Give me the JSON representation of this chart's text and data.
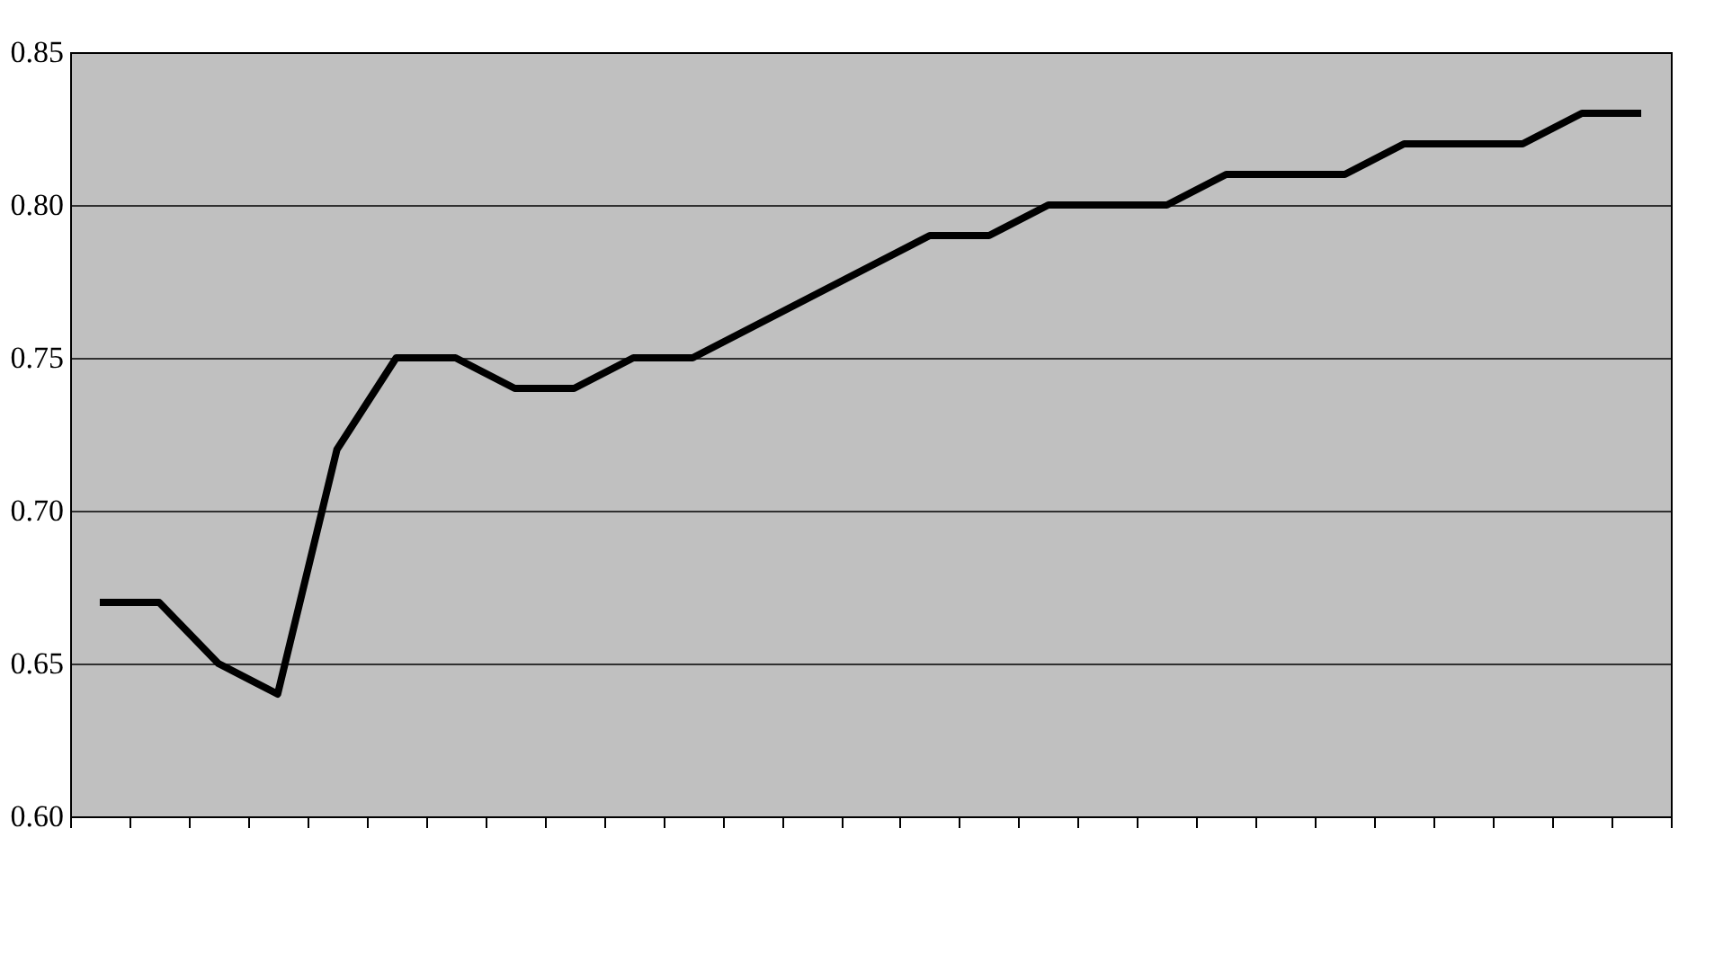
{
  "chart_data": {
    "type": "line",
    "categories": [
      null,
      null,
      null,
      null,
      null,
      null,
      null,
      null,
      null,
      null,
      null,
      null,
      null,
      null,
      null,
      null,
      null,
      null,
      null,
      null,
      null,
      null,
      null,
      null,
      null,
      null,
      null
    ],
    "series": [
      {
        "color": "#000000",
        "values": [
          0.67,
          0.67,
          0.65,
          0.64,
          0.72,
          0.75,
          0.75,
          0.74,
          0.74,
          0.75,
          0.75,
          0.76,
          0.77,
          0.78,
          0.79,
          0.79,
          0.8,
          0.8,
          0.8,
          0.81,
          0.81,
          0.81,
          0.82,
          0.82,
          0.82,
          0.83,
          0.83
        ]
      }
    ],
    "ylim": [
      0.6,
      0.85
    ],
    "yticks": [
      {
        "value": 0.6,
        "label": "0.60"
      },
      {
        "value": 0.65,
        "label": "0.65"
      },
      {
        "value": 0.7,
        "label": "0.70"
      },
      {
        "value": 0.75,
        "label": "0.75"
      },
      {
        "value": 0.8,
        "label": "0.80"
      },
      {
        "value": 0.85,
        "label": "0.85"
      }
    ],
    "grid": "y",
    "tick_labels": "y",
    "marker": "none",
    "line_style": "solid"
  }
}
